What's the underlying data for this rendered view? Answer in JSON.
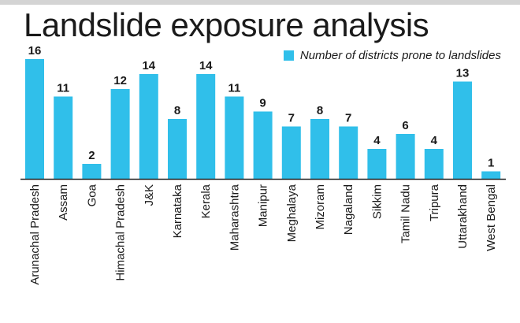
{
  "colors": {
    "bar": "#30bfea",
    "top_rule": "#d4d4d4",
    "axis": "#222222"
  },
  "chart_data": {
    "type": "bar",
    "title": "Landslide exposure analysis",
    "legend": {
      "position": "top-right",
      "label": "Number of districts prone to landslides"
    },
    "categories": [
      "Arunachal Pradesh",
      "Assam",
      "Goa",
      "Himachal Pradesh",
      "J&K",
      "Karnataka",
      "Kerala",
      "Maharashtra",
      "Manipur",
      "Meghalaya",
      "Mizoram",
      "Nagaland",
      "Sikkim",
      "Tamil Nadu",
      "Tripura",
      "Uttarakhand",
      "West Bengal"
    ],
    "series": [
      {
        "name": "Number of districts prone to landslides",
        "values": [
          16,
          11,
          2,
          12,
          14,
          8,
          14,
          11,
          9,
          7,
          8,
          7,
          4,
          6,
          4,
          13,
          1
        ]
      }
    ],
    "ylim": [
      0,
      16
    ],
    "grid": false,
    "data_labels": true
  }
}
